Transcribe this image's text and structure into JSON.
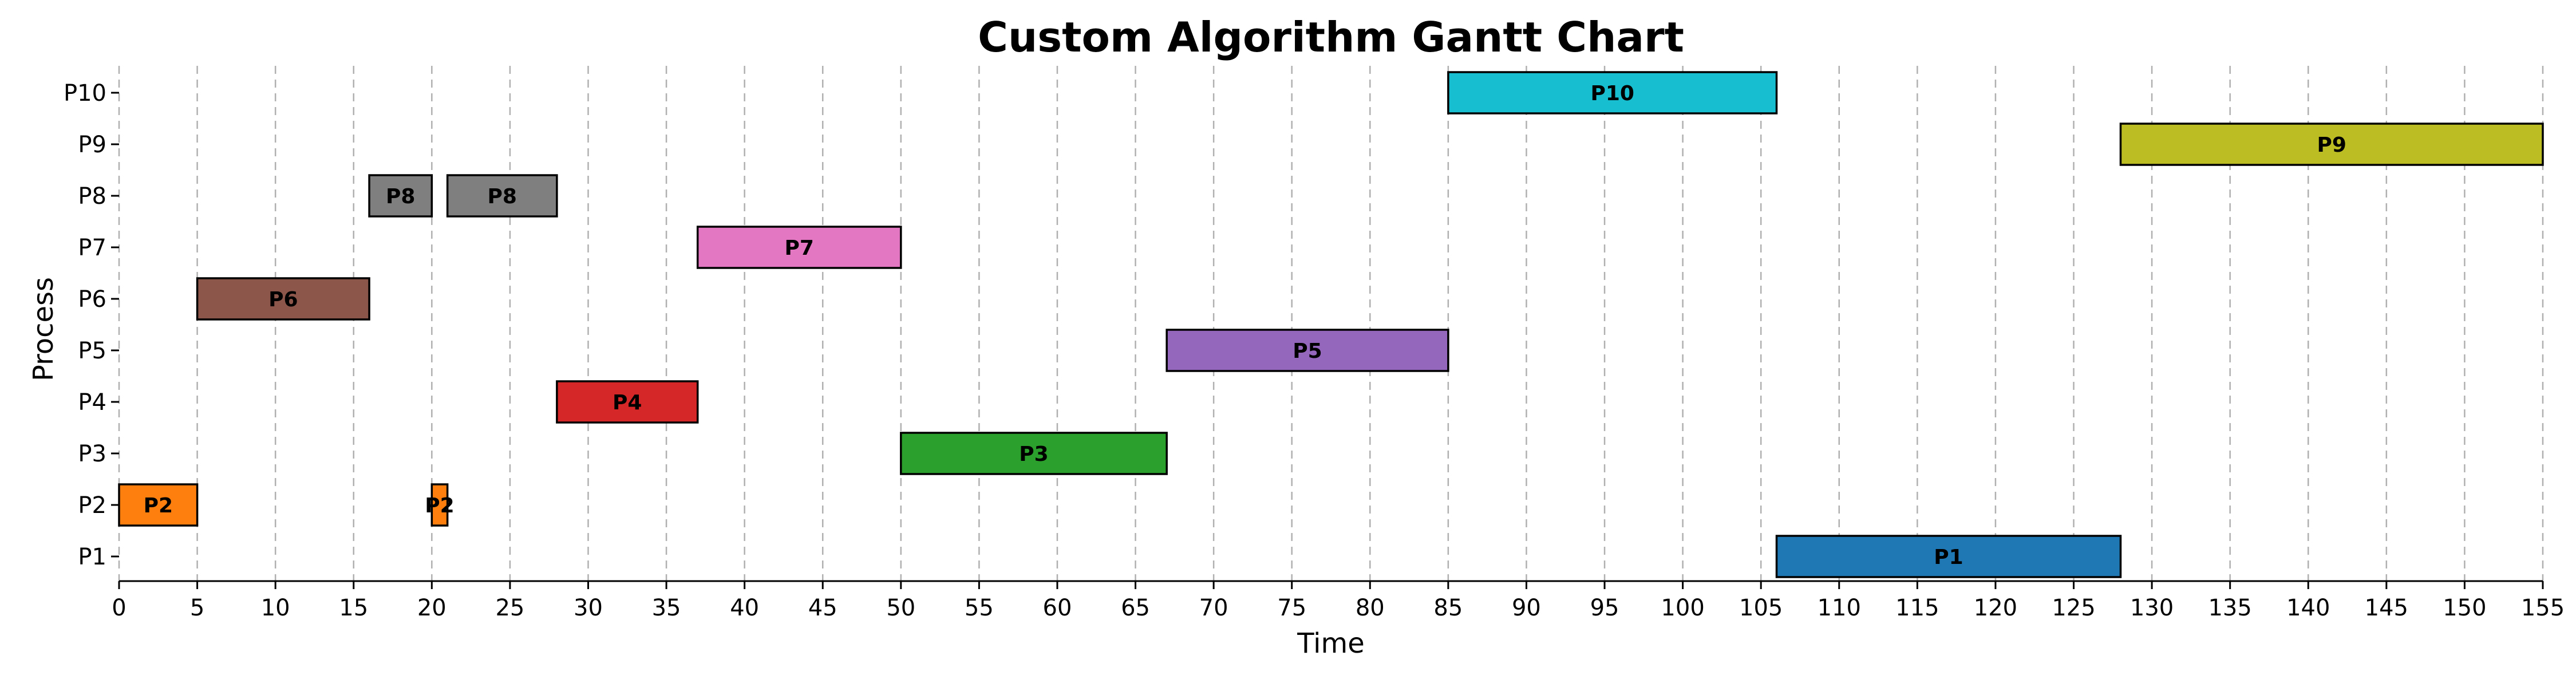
{
  "chart_data": {
    "type": "gantt",
    "title": "Custom Algorithm Gantt Chart",
    "xlabel": "Time",
    "ylabel": "Process",
    "xlim": [
      0,
      155
    ],
    "x_ticks": [
      0,
      5,
      10,
      15,
      20,
      25,
      30,
      35,
      40,
      45,
      50,
      55,
      60,
      65,
      70,
      75,
      80,
      85,
      90,
      95,
      100,
      105,
      110,
      115,
      120,
      125,
      130,
      135,
      140,
      145,
      150,
      155
    ],
    "categories": [
      "P1",
      "P2",
      "P3",
      "P4",
      "P5",
      "P6",
      "P7",
      "P8",
      "P9",
      "P10"
    ],
    "grid": "vertical dashed",
    "bars": [
      {
        "process": "P2",
        "label": "P2",
        "start": 0,
        "end": 5,
        "color": "#ff7f0e"
      },
      {
        "process": "P6",
        "label": "P6",
        "start": 5,
        "end": 16,
        "color": "#8c564b"
      },
      {
        "process": "P8",
        "label": "P8",
        "start": 16,
        "end": 20,
        "color": "#7f7f7f"
      },
      {
        "process": "P2",
        "label": "P2",
        "start": 20,
        "end": 21,
        "color": "#ff7f0e"
      },
      {
        "process": "P8",
        "label": "P8",
        "start": 21,
        "end": 28,
        "color": "#7f7f7f"
      },
      {
        "process": "P4",
        "label": "P4",
        "start": 28,
        "end": 37,
        "color": "#d62728"
      },
      {
        "process": "P7",
        "label": "P7",
        "start": 37,
        "end": 50,
        "color": "#e377c2"
      },
      {
        "process": "P3",
        "label": "P3",
        "start": 50,
        "end": 67,
        "color": "#2ca02c"
      },
      {
        "process": "P5",
        "label": "P5",
        "start": 67,
        "end": 85,
        "color": "#9467bd"
      },
      {
        "process": "P10",
        "label": "P10",
        "start": 85,
        "end": 106,
        "color": "#17becf"
      },
      {
        "process": "P1",
        "label": "P1",
        "start": 106,
        "end": 128,
        "color": "#1f77b4"
      },
      {
        "process": "P9",
        "label": "P9",
        "start": 128,
        "end": 155,
        "color": "#bcbd22"
      }
    ]
  }
}
